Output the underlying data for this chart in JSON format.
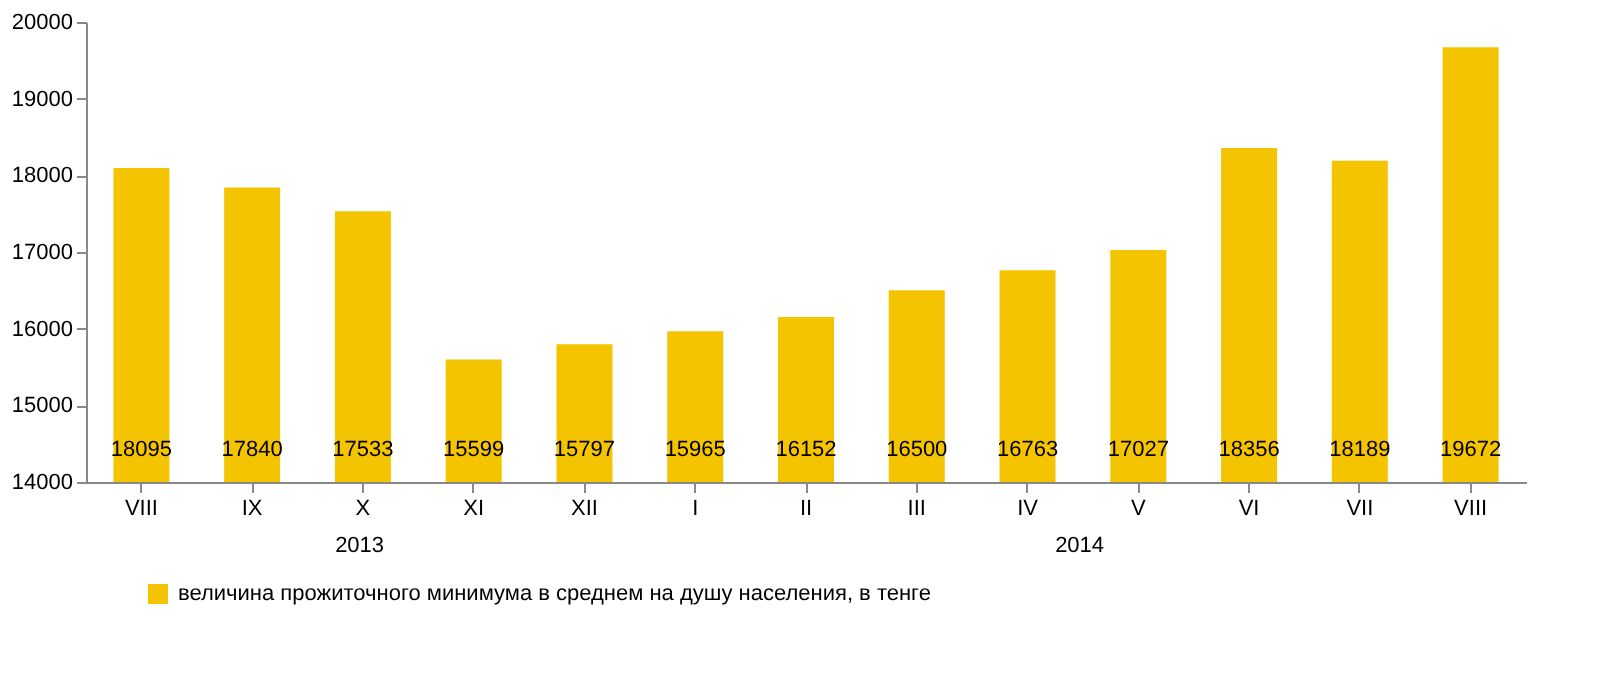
{
  "chart_data": {
    "type": "bar",
    "categories": [
      "VIII",
      "IX",
      "X",
      "XI",
      "XII",
      "I",
      "II",
      "III",
      "IV",
      "V",
      "VI",
      "VII",
      "VIII"
    ],
    "series": [
      {
        "name": "величина прожиточного минимума в среднем на душу населения, в тенге",
        "color": "#f5c400",
        "values": [
          18095,
          17840,
          17533,
          15599,
          15797,
          15965,
          16152,
          16500,
          16763,
          17027,
          18356,
          18189,
          19672
        ]
      }
    ],
    "ylim": [
      14000,
      20000
    ],
    "yticks": [
      14000,
      15000,
      16000,
      17000,
      18000,
      19000,
      20000
    ],
    "grid": false,
    "legend": "bottom",
    "data_labels": true,
    "annotations": [
      "2013",
      "2014"
    ]
  }
}
